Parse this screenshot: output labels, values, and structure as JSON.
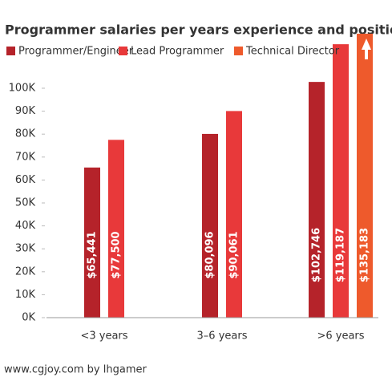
{
  "chart_data": {
    "type": "bar",
    "title": "Programmer salaries per years experience and position",
    "categories": [
      "<3 years",
      "3–6 years",
      ">6 years"
    ],
    "series": [
      {
        "name": "Programmer/Engineer",
        "color": "#b5232a",
        "values": [
          65441,
          80096,
          102746
        ],
        "value_labels": [
          "$65,441",
          "$80,096",
          "$102,746"
        ]
      },
      {
        "name": "Lead Programmer",
        "color": "#e8393a",
        "values": [
          77500,
          90061,
          119187
        ],
        "value_labels": [
          "$77,500",
          "$90,061",
          "$119,187"
        ]
      },
      {
        "name": "Technical Director",
        "color": "#ee5a2c",
        "values": [
          null,
          null,
          135183
        ],
        "value_labels": [
          null,
          null,
          "$135,183"
        ]
      }
    ],
    "ylim": [
      0,
      100000
    ],
    "yticks": [
      {
        "value": 0,
        "label": "0K"
      },
      {
        "value": 10000,
        "label": "10K"
      },
      {
        "value": 20000,
        "label": "20K"
      },
      {
        "value": 30000,
        "label": "30K"
      },
      {
        "value": 40000,
        "label": "40K"
      },
      {
        "value": 50000,
        "label": "50K"
      },
      {
        "value": 60000,
        "label": "60K"
      },
      {
        "value": 70000,
        "label": "70K"
      },
      {
        "value": 80000,
        "label": "80K"
      },
      {
        "value": 90000,
        "label": "90K"
      },
      {
        "value": 100000,
        "label": "100K"
      }
    ],
    "grid": false,
    "footer": "www.cgjoy.com by lhgamer"
  }
}
